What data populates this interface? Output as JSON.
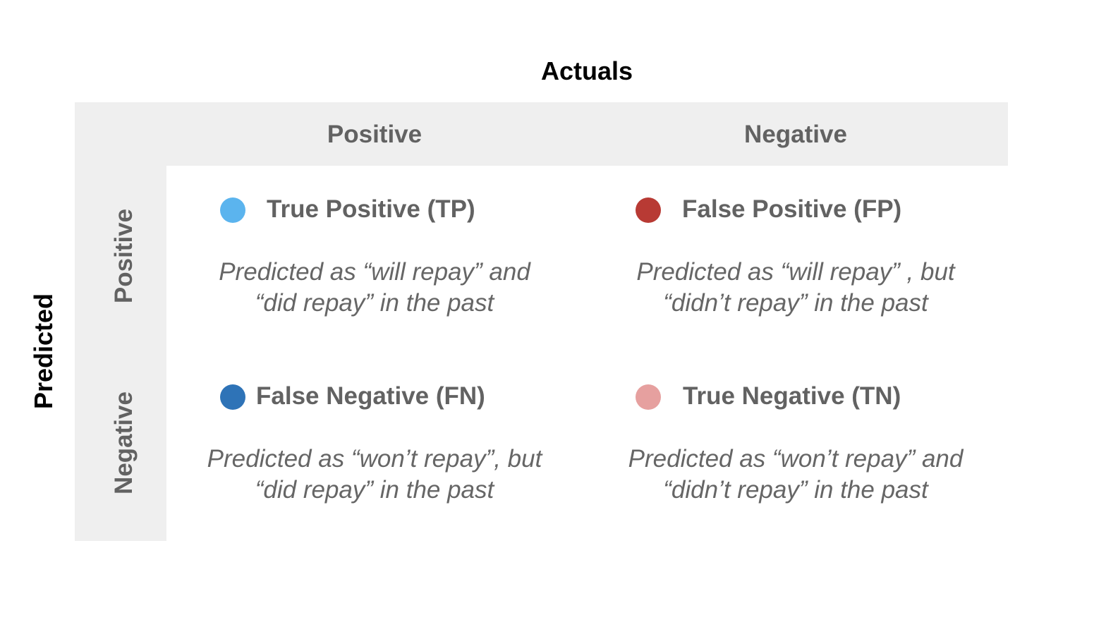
{
  "diagram": {
    "actuals_title": "Actuals",
    "predicted_title": "Predicted",
    "columns": [
      "Positive",
      "Negative"
    ],
    "rows": [
      "Positive",
      "Negative"
    ],
    "cells": [
      {
        "title": "True Positive (TP)",
        "color": "#5bb4ee",
        "desc_line1": "Predicted as “will repay” and",
        "desc_line2": "“did repay” in the past"
      },
      {
        "title": "False Positive (FP)",
        "color": "#b83a34",
        "desc_line1": "Predicted as “will repay” , but",
        "desc_line2": "“didn’t repay” in the past"
      },
      {
        "title": "False Negative (FN)",
        "color": "#2e73b7",
        "desc_line1": "Predicted as “won’t repay”, but",
        "desc_line2": "“did repay” in the past"
      },
      {
        "title": "True Negative (TN)",
        "color": "#e6a09f",
        "desc_line1": "Predicted as “won’t repay” and",
        "desc_line2": "“didn’t repay” in the past"
      }
    ]
  }
}
